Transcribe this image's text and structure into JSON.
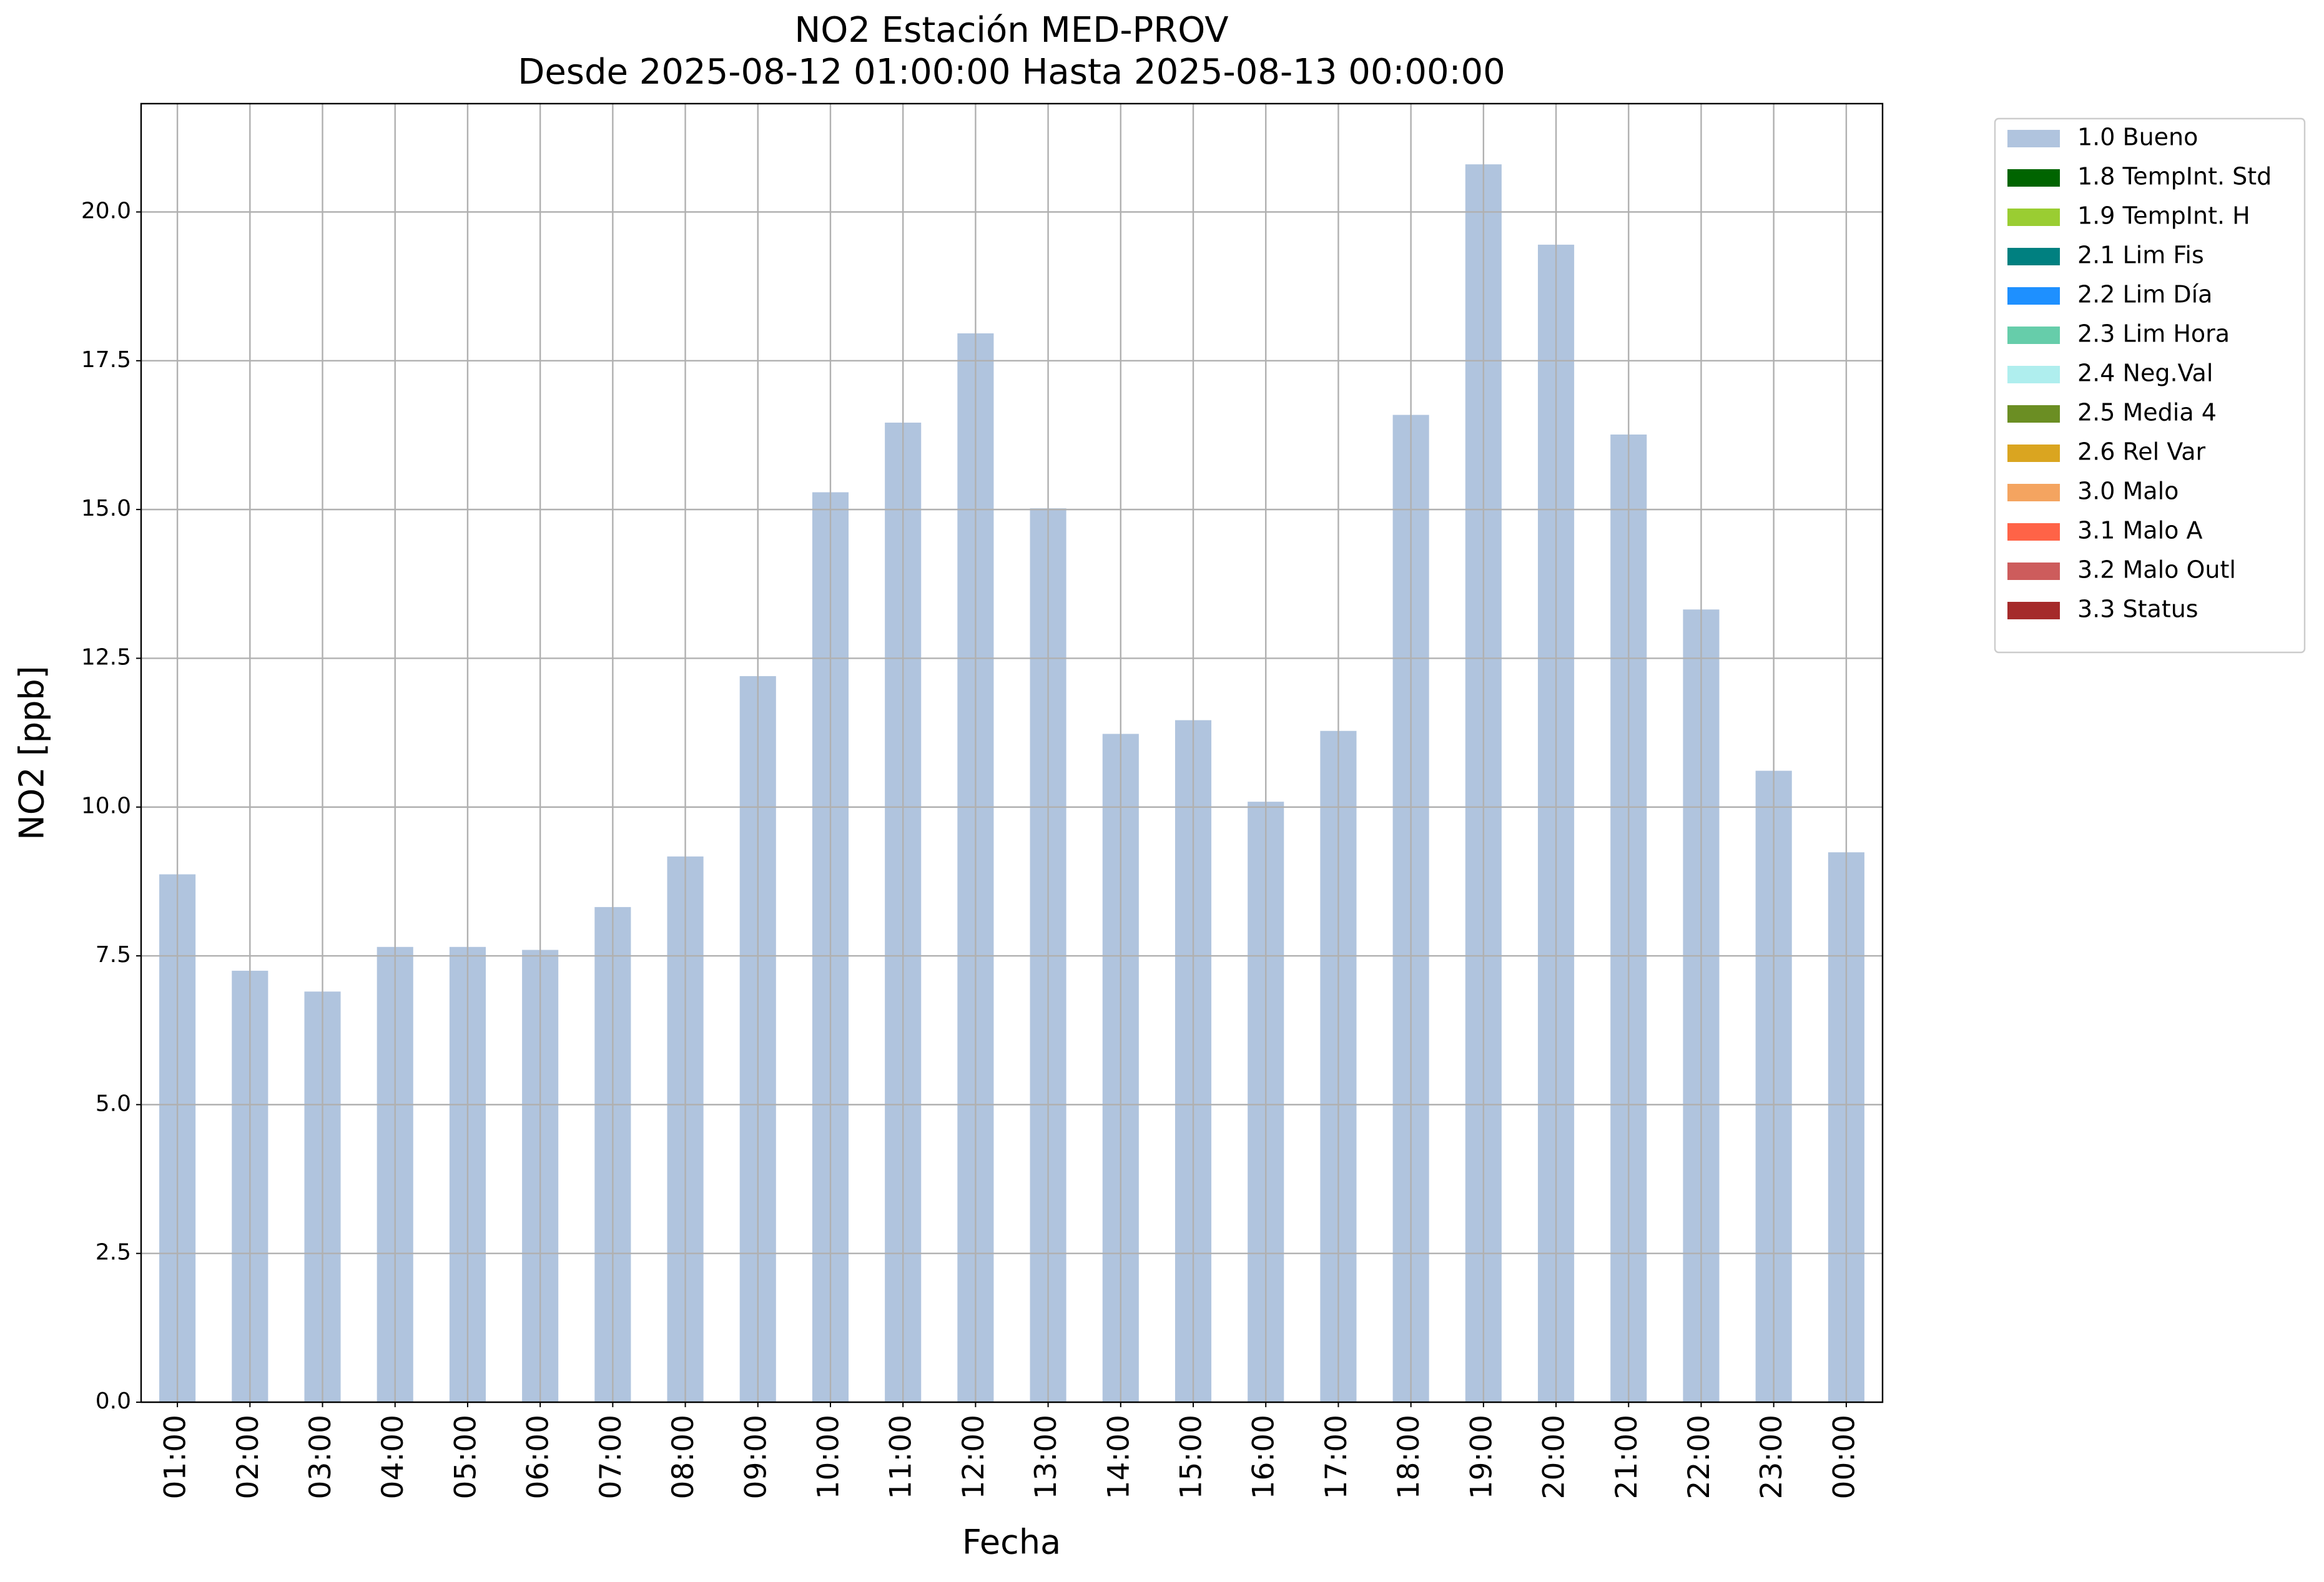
{
  "chart_data": {
    "type": "stacked-bar",
    "title": "NO2 Estación MED-PROV",
    "subtitle": "Desde 2025-08-12 01:00:00 Hasta 2025-08-13 00:00:00",
    "x_label": "Fecha",
    "y_label": "NO2 [ppb]",
    "categories": [
      "01:00",
      "02:00",
      "03:00",
      "04:00",
      "05:00",
      "06:00",
      "07:00",
      "08:00",
      "09:00",
      "10:00",
      "11:00",
      "12:00",
      "13:00",
      "14:00",
      "15:00",
      "16:00",
      "17:00",
      "18:00",
      "19:00",
      "20:00",
      "21:00",
      "22:00",
      "23:00",
      "00:00"
    ],
    "series": [
      {
        "name": "1.0 Bueno",
        "color": "#b0c4de",
        "values": [
          8.87,
          7.25,
          6.9,
          7.65,
          7.65,
          7.6,
          8.32,
          9.17,
          12.2,
          15.29,
          16.46,
          17.96,
          15.02,
          11.23,
          11.46,
          10.09,
          11.28,
          16.59,
          20.8,
          19.45,
          16.26,
          13.32,
          10.61,
          9.24
        ]
      },
      {
        "name": "1.8 TempInt. Std",
        "color": "#006400",
        "values": [
          0,
          0,
          0,
          0,
          0,
          0,
          0,
          0,
          0,
          0,
          0,
          0,
          0,
          0,
          0,
          0,
          0,
          0,
          0,
          0,
          0,
          0,
          0,
          0
        ]
      },
      {
        "name": "1.9 TempInt. H",
        "color": "#9acd32",
        "values": [
          0,
          0,
          0,
          0,
          0,
          0,
          0,
          0,
          0,
          0,
          0,
          0,
          0,
          0,
          0,
          0,
          0,
          0,
          0,
          0,
          0,
          0,
          0,
          0
        ]
      },
      {
        "name": "2.1 Lim Fis",
        "color": "#008080",
        "values": [
          0,
          0,
          0,
          0,
          0,
          0,
          0,
          0,
          0,
          0,
          0,
          0,
          0,
          0,
          0,
          0,
          0,
          0,
          0,
          0,
          0,
          0,
          0,
          0
        ]
      },
      {
        "name": "2.2 Lim Día",
        "color": "#1e90ff",
        "values": [
          0,
          0,
          0,
          0,
          0,
          0,
          0,
          0,
          0,
          0,
          0,
          0,
          0,
          0,
          0,
          0,
          0,
          0,
          0,
          0,
          0,
          0,
          0,
          0
        ]
      },
      {
        "name": "2.3 Lim Hora",
        "color": "#66cdaa",
        "values": [
          0,
          0,
          0,
          0,
          0,
          0,
          0,
          0,
          0,
          0,
          0,
          0,
          0,
          0,
          0,
          0,
          0,
          0,
          0,
          0,
          0,
          0,
          0,
          0
        ]
      },
      {
        "name": "2.4 Neg.Val",
        "color": "#afeeee",
        "values": [
          0,
          0,
          0,
          0,
          0,
          0,
          0,
          0,
          0,
          0,
          0,
          0,
          0,
          0,
          0,
          0,
          0,
          0,
          0,
          0,
          0,
          0,
          0,
          0
        ]
      },
      {
        "name": "2.5 Media 4",
        "color": "#6b8e23",
        "values": [
          0,
          0,
          0,
          0,
          0,
          0,
          0,
          0,
          0,
          0,
          0,
          0,
          0,
          0,
          0,
          0,
          0,
          0,
          0,
          0,
          0,
          0,
          0,
          0
        ]
      },
      {
        "name": "2.6 Rel Var",
        "color": "#daa520",
        "values": [
          0,
          0,
          0,
          0,
          0,
          0,
          0,
          0,
          0,
          0,
          0,
          0,
          0,
          0,
          0,
          0,
          0,
          0,
          0,
          0,
          0,
          0,
          0,
          0
        ]
      },
      {
        "name": "3.0 Malo",
        "color": "#f4a460",
        "values": [
          0,
          0,
          0,
          0,
          0,
          0,
          0,
          0,
          0,
          0,
          0,
          0,
          0,
          0,
          0,
          0,
          0,
          0,
          0,
          0,
          0,
          0,
          0,
          0
        ]
      },
      {
        "name": "3.1 Malo A",
        "color": "#ff6347",
        "values": [
          0,
          0,
          0,
          0,
          0,
          0,
          0,
          0,
          0,
          0,
          0,
          0,
          0,
          0,
          0,
          0,
          0,
          0,
          0,
          0,
          0,
          0,
          0,
          0
        ]
      },
      {
        "name": "3.2 Malo Outl",
        "color": "#cd5c5c",
        "values": [
          0,
          0,
          0,
          0,
          0,
          0,
          0,
          0,
          0,
          0,
          0,
          0,
          0,
          0,
          0,
          0,
          0,
          0,
          0,
          0,
          0,
          0,
          0,
          0
        ]
      },
      {
        "name": "3.3 Status",
        "color": "#a52a2a",
        "values": [
          0,
          0,
          0,
          0,
          0,
          0,
          0,
          0,
          0,
          0,
          0,
          0,
          0,
          0,
          0,
          0,
          0,
          0,
          0,
          0,
          0,
          0,
          0,
          0
        ]
      }
    ],
    "ylim": [
      0,
      21.82
    ],
    "yticks": [
      {
        "value": 0,
        "label": "0.0"
      },
      2.5,
      {
        "value": 5,
        "label": "5.0"
      },
      7.5,
      {
        "value": 10,
        "label": "10.0"
      },
      12.5,
      {
        "value": 15,
        "label": "15.0"
      },
      17.5,
      {
        "value": 20,
        "label": "20.0"
      }
    ],
    "grid": true,
    "legend": "outside-upper-right"
  }
}
